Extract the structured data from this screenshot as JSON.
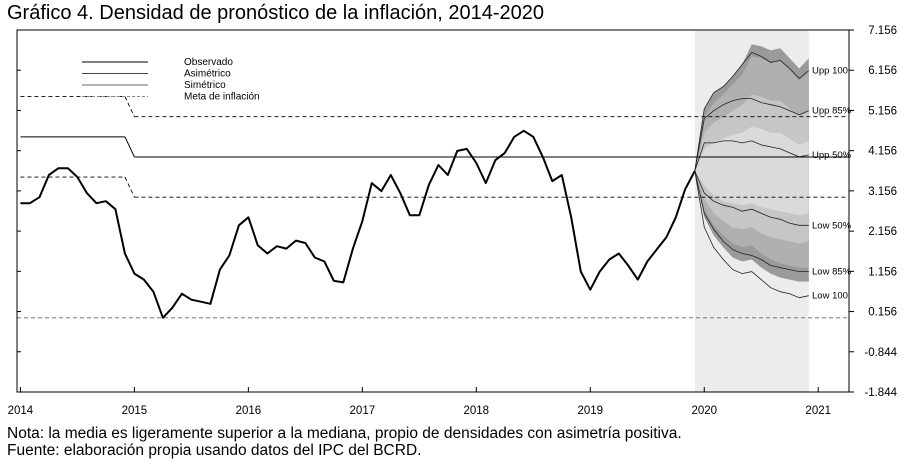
{
  "title": "Gráfico 4. Densidad de pronóstico de la inflación, 2014-2020",
  "notes": [
    "Nota: la media es ligeramente superior a la mediana, propio de densidades con asimetría positiva.",
    "Fuente: elaboración propia usando datos del IPC del BCRD."
  ],
  "chart_data": {
    "type": "line",
    "x_ticks": [
      2014,
      2015,
      2016,
      2017,
      2018,
      2019,
      2020,
      2021
    ],
    "y_ticks": [
      "7.156",
      "6.156",
      "5.156",
      "4.156",
      "3.156",
      "2.156",
      "1.156",
      "0.156",
      "-0.844",
      "-1.844"
    ],
    "ylim": [
      -1.844,
      7.156
    ],
    "xlim": [
      2013.97,
      2021.27
    ],
    "grid": false,
    "legend": {
      "placement": "top-left",
      "entries": [
        "Observado",
        "Asimétrico",
        "Simétrico",
        "Meta de inflación"
      ]
    },
    "forecast_region": {
      "x_start": 2019.917,
      "x_end": 2020.917,
      "color": "#ececec"
    },
    "target_band": {
      "name": "Meta de inflación",
      "center": [
        {
          "x_from": 2014.0,
          "x_to": 2014.917,
          "value": 4.5
        },
        {
          "x_from": 2015.0,
          "x_to": 2021.27,
          "value": 4.0
        }
      ],
      "upper": [
        {
          "x_from": 2014.0,
          "x_to": 2014.917,
          "value": 5.5
        },
        {
          "x_from": 2015.0,
          "x_to": 2021.27,
          "value": 5.0
        }
      ],
      "lower": [
        {
          "x_from": 2014.0,
          "x_to": 2014.917,
          "value": 3.5
        },
        {
          "x_from": 2015.0,
          "x_to": 2021.27,
          "value": 3.0
        }
      ],
      "zero_line": 0.0
    },
    "series": [
      {
        "name": "Observado",
        "x": [
          2014.0,
          2014.083,
          2014.167,
          2014.25,
          2014.333,
          2014.417,
          2014.5,
          2014.583,
          2014.667,
          2014.75,
          2014.833,
          2014.917,
          2015.0,
          2015.083,
          2015.167,
          2015.25,
          2015.333,
          2015.417,
          2015.5,
          2015.583,
          2015.667,
          2015.75,
          2015.833,
          2015.917,
          2016.0,
          2016.083,
          2016.167,
          2016.25,
          2016.333,
          2016.417,
          2016.5,
          2016.583,
          2016.667,
          2016.75,
          2016.833,
          2016.917,
          2017.0,
          2017.083,
          2017.167,
          2017.25,
          2017.333,
          2017.417,
          2017.5,
          2017.583,
          2017.667,
          2017.75,
          2017.833,
          2017.917,
          2018.0,
          2018.083,
          2018.167,
          2018.25,
          2018.333,
          2018.417,
          2018.5,
          2018.583,
          2018.667,
          2018.75,
          2018.833,
          2018.917,
          2019.0,
          2019.083,
          2019.167,
          2019.25,
          2019.333,
          2019.417,
          2019.5,
          2019.583,
          2019.667,
          2019.75,
          2019.833,
          2019.917
        ],
        "y": [
          2.85,
          2.85,
          3.0,
          3.55,
          3.72,
          3.72,
          3.5,
          3.1,
          2.85,
          2.9,
          2.7,
          1.6,
          1.1,
          0.95,
          0.65,
          0.0,
          0.25,
          0.6,
          0.45,
          0.4,
          0.35,
          1.2,
          1.55,
          2.3,
          2.5,
          1.8,
          1.6,
          1.78,
          1.72,
          1.92,
          1.86,
          1.5,
          1.4,
          0.92,
          0.88,
          1.72,
          2.4,
          3.35,
          3.15,
          3.55,
          3.1,
          2.55,
          2.55,
          3.3,
          3.8,
          3.55,
          4.15,
          4.2,
          3.85,
          3.35,
          3.92,
          4.1,
          4.5,
          4.65,
          4.5,
          4.0,
          3.4,
          3.55,
          2.5,
          1.15,
          0.7,
          1.15,
          1.45,
          1.6,
          1.3,
          0.95,
          1.4,
          1.7,
          2.0,
          2.5,
          3.2,
          3.65
        ]
      }
    ],
    "fan": {
      "x": [
        2019.917,
        2020.0,
        2020.083,
        2020.167,
        2020.25,
        2020.333,
        2020.417,
        2020.5,
        2020.583,
        2020.667,
        2020.75,
        2020.833,
        2020.917
      ],
      "bands_asymmetric": [
        {
          "upper": [
            3.65,
            5.2,
            5.6,
            5.75,
            6.0,
            6.3,
            6.8,
            6.75,
            6.65,
            6.7,
            6.45,
            6.2,
            6.45
          ],
          "lower": [
            3.65,
            2.5,
            2.05,
            1.75,
            1.5,
            1.4,
            1.45,
            1.25,
            1.1,
            1.0,
            0.95,
            0.9,
            0.9
          ]
        },
        {
          "upper": [
            3.65,
            5.0,
            5.35,
            5.55,
            5.8,
            6.05,
            6.5,
            6.45,
            6.35,
            6.4,
            6.15,
            5.9,
            6.1
          ],
          "lower": [
            3.65,
            2.7,
            2.3,
            2.05,
            1.85,
            1.75,
            1.8,
            1.6,
            1.45,
            1.35,
            1.3,
            1.25,
            1.25
          ]
        },
        {
          "upper": [
            3.65,
            4.6,
            4.85,
            5.0,
            5.15,
            5.3,
            5.55,
            5.5,
            5.4,
            5.4,
            5.2,
            5.0,
            5.15
          ],
          "lower": [
            3.65,
            2.95,
            2.6,
            2.4,
            2.25,
            2.2,
            2.25,
            2.1,
            2.0,
            1.95,
            1.9,
            1.85,
            1.9
          ]
        },
        {
          "upper": [
            3.65,
            4.2,
            4.35,
            4.45,
            4.55,
            4.6,
            4.75,
            4.7,
            4.6,
            4.6,
            4.45,
            4.3,
            4.4
          ],
          "lower": [
            3.65,
            3.3,
            3.05,
            2.9,
            2.85,
            2.8,
            2.85,
            2.75,
            2.7,
            2.65,
            2.6,
            2.55,
            2.6
          ]
        }
      ],
      "percentile_lines": [
        {
          "label": "Upp 100",
          "y": [
            3.65,
            5.2,
            5.6,
            5.75,
            6.0,
            6.3,
            6.6,
            6.5,
            6.35,
            6.4,
            6.2,
            5.95,
            6.15
          ]
        },
        {
          "label": "Upp 85%",
          "y": [
            3.65,
            4.95,
            5.15,
            5.3,
            5.4,
            5.45,
            5.45,
            5.35,
            5.3,
            5.25,
            5.15,
            5.05,
            5.15
          ]
        },
        {
          "label": "Upp 50%",
          "y": [
            3.65,
            4.35,
            4.35,
            4.4,
            4.4,
            4.35,
            4.4,
            4.3,
            4.25,
            4.2,
            4.1,
            4.0,
            4.05
          ]
        },
        {
          "label": "Low 50%",
          "y": [
            3.65,
            3.1,
            2.9,
            2.8,
            2.75,
            2.65,
            2.7,
            2.6,
            2.5,
            2.45,
            2.35,
            2.3,
            2.3
          ]
        },
        {
          "label": "Low 85%",
          "y": [
            3.65,
            2.6,
            2.2,
            1.9,
            1.7,
            1.6,
            1.55,
            1.45,
            1.3,
            1.25,
            1.2,
            1.15,
            1.15
          ]
        },
        {
          "label": "Low 100",
          "y": [
            3.65,
            2.25,
            1.75,
            1.45,
            1.2,
            1.1,
            1.15,
            0.95,
            0.75,
            0.65,
            0.6,
            0.5,
            0.55
          ]
        }
      ]
    },
    "colors": {
      "observed": "#000000",
      "fan_bands": [
        "#9a9a9a",
        "#b0b0b0",
        "#c6c6c6",
        "#dadada"
      ],
      "forecast_shade": "#ececec",
      "target": "#000000",
      "percentile_lines": "#222222"
    }
  }
}
